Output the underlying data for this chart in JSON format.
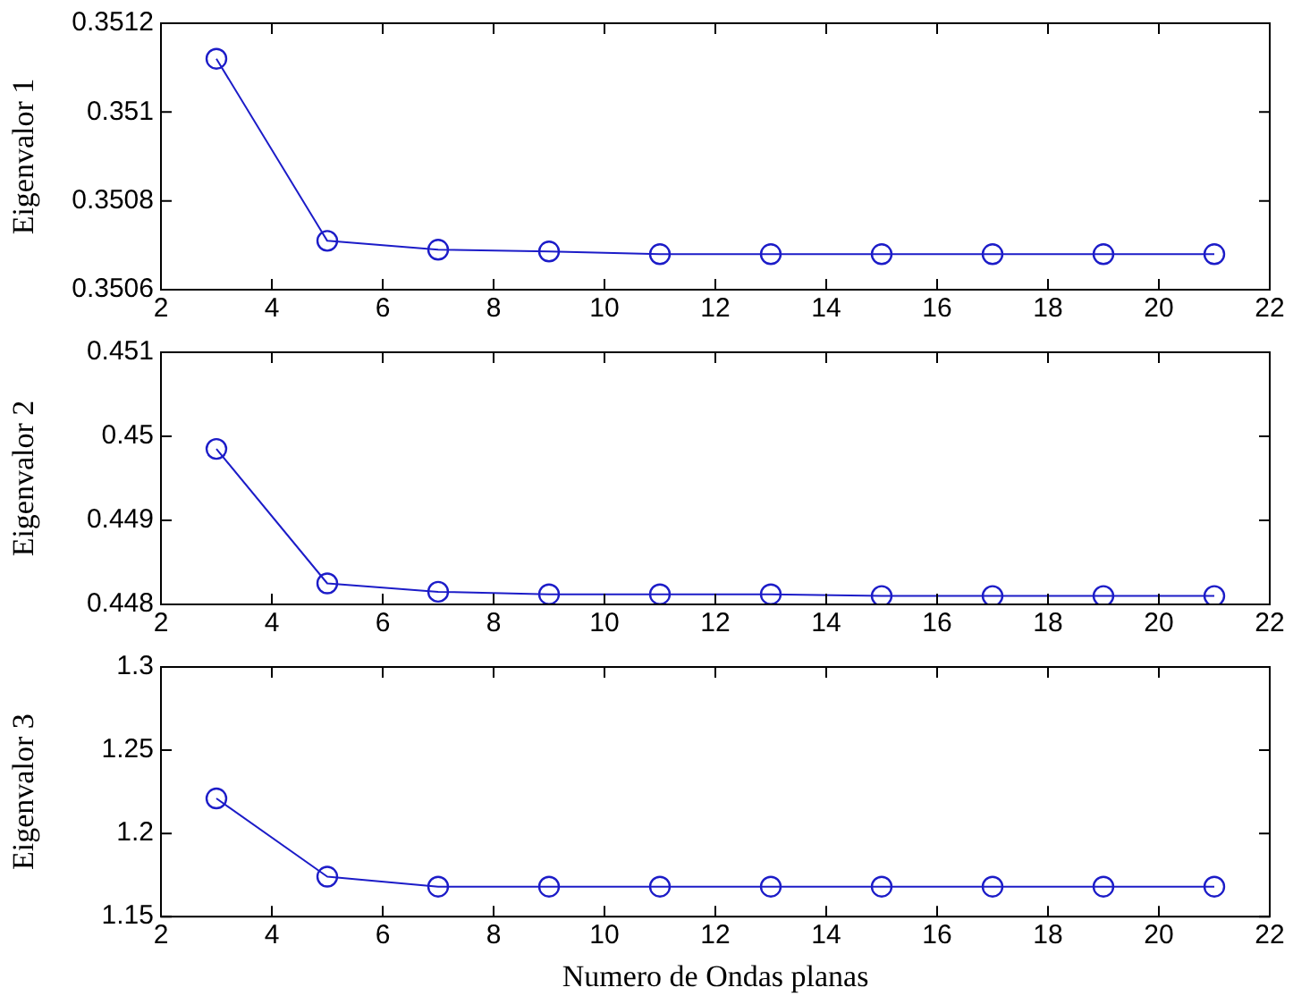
{
  "chart_data": [
    {
      "type": "line",
      "ylabel": "Eigenvalor 1",
      "x": [
        3,
        5,
        7,
        9,
        11,
        13,
        15,
        17,
        19,
        21
      ],
      "series": [
        {
          "color": "#1c1cc8",
          "values": [
            0.35112,
            0.35071,
            0.35069,
            0.350686,
            0.35068,
            0.35068,
            0.35068,
            0.35068,
            0.35068,
            0.35068
          ]
        }
      ],
      "xlim": [
        2,
        22
      ],
      "xticks": [
        2,
        4,
        6,
        8,
        10,
        12,
        14,
        16,
        18,
        20,
        22
      ],
      "ylim": [
        0.3506,
        0.3512
      ],
      "yticks": [
        0.3506,
        0.3508,
        0.351,
        0.3512
      ],
      "marker": "circle",
      "line_style": "solid",
      "grid": false
    },
    {
      "type": "line",
      "ylabel": "Eigenvalor 2",
      "x": [
        3,
        5,
        7,
        9,
        11,
        13,
        15,
        17,
        19,
        21
      ],
      "series": [
        {
          "color": "#1c1cc8",
          "values": [
            0.44985,
            0.44825,
            0.44815,
            0.44812,
            0.44812,
            0.44812,
            0.4481,
            0.4481,
            0.4481,
            0.4481
          ]
        }
      ],
      "xlim": [
        2,
        22
      ],
      "xticks": [
        2,
        4,
        6,
        8,
        10,
        12,
        14,
        16,
        18,
        20,
        22
      ],
      "ylim": [
        0.448,
        0.451
      ],
      "yticks": [
        0.448,
        0.449,
        0.45,
        0.451
      ],
      "marker": "circle",
      "line_style": "solid",
      "grid": false
    },
    {
      "type": "line",
      "ylabel": "Eigenvalor 3",
      "xlabel": "Numero de Ondas planas",
      "x": [
        3,
        5,
        7,
        9,
        11,
        13,
        15,
        17,
        19,
        21
      ],
      "series": [
        {
          "color": "#1c1cc8",
          "values": [
            1.221,
            1.174,
            1.168,
            1.168,
            1.168,
            1.168,
            1.168,
            1.168,
            1.168,
            1.168
          ]
        }
      ],
      "xlim": [
        2,
        22
      ],
      "xticks": [
        2,
        4,
        6,
        8,
        10,
        12,
        14,
        16,
        18,
        20,
        22
      ],
      "ylim": [
        1.15,
        1.3
      ],
      "yticks": [
        1.15,
        1.2,
        1.25,
        1.3
      ],
      "marker": "circle",
      "line_style": "solid",
      "grid": false
    }
  ]
}
